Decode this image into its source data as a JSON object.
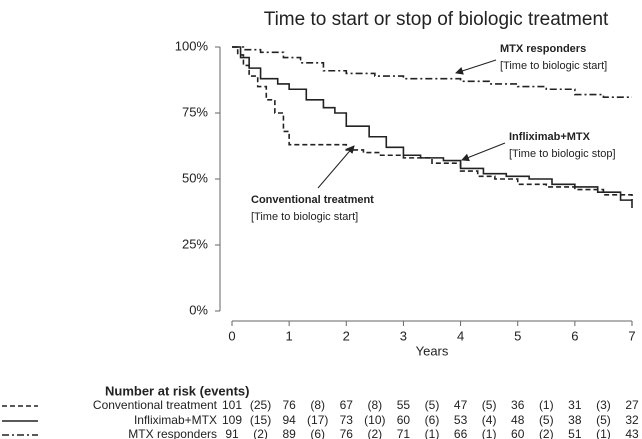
{
  "chart_data": {
    "type": "step",
    "title": "Time to start or stop of biologic treatment",
    "xlabel": "Years",
    "xlim": [
      0,
      7
    ],
    "xticks": [
      0,
      1,
      2,
      3,
      4,
      5,
      6,
      7
    ],
    "ylim": [
      0,
      100
    ],
    "yticks": [
      {
        "value": 0,
        "label": "0%"
      },
      {
        "value": 25,
        "label": "25%"
      },
      {
        "value": 50,
        "label": "50%"
      },
      {
        "value": 75,
        "label": "75%"
      },
      {
        "value": 100,
        "label": "100%"
      }
    ],
    "series": [
      {
        "name": "Conventional treatment",
        "color": "#222222",
        "dash": "dashed",
        "x": [
          0,
          0.1,
          0.2,
          0.3,
          0.45,
          0.6,
          0.75,
          0.9,
          1.0,
          1.85,
          2.0,
          2.3,
          2.6,
          3.0,
          3.5,
          4.0,
          4.3,
          4.6,
          5.0,
          5.5,
          6.0,
          6.5,
          7.0
        ],
        "values": [
          100,
          97,
          93,
          89,
          85,
          80,
          75,
          68,
          63,
          63,
          61,
          60,
          59,
          58,
          56,
          53,
          51,
          50,
          48,
          47,
          46,
          44,
          42
        ]
      },
      {
        "name": "Infliximab+MTX",
        "color": "#222222",
        "dash": "solid",
        "x": [
          0,
          0.15,
          0.3,
          0.5,
          0.8,
          1.0,
          1.3,
          1.6,
          1.8,
          2.0,
          2.4,
          2.7,
          3.0,
          3.3,
          3.7,
          4.0,
          4.4,
          4.8,
          5.2,
          5.6,
          6.0,
          6.4,
          6.8,
          7.0
        ],
        "values": [
          100,
          96,
          92,
          88,
          86,
          84,
          80,
          77,
          75,
          70,
          66,
          62,
          59,
          58,
          57,
          54,
          52,
          51,
          50,
          48,
          47,
          45,
          42,
          39
        ]
      },
      {
        "name": "MTX responders",
        "color": "#222222",
        "dash": "dashdot",
        "x": [
          0,
          0.2,
          0.5,
          0.9,
          1.2,
          1.6,
          2.0,
          2.5,
          3.0,
          4.0,
          4.5,
          5.0,
          5.5,
          6.0,
          6.5,
          7.0
        ],
        "values": [
          100,
          99,
          98,
          96,
          94,
          91,
          90,
          89,
          88,
          87,
          86,
          85,
          84,
          82,
          81,
          81
        ]
      }
    ],
    "annotations": [
      {
        "series": 2,
        "text": "[Time to biologic start]"
      },
      {
        "series": 1,
        "text": "[Time to biologic stop]"
      },
      {
        "series": 0,
        "text": "[Time to biologic start]"
      }
    ],
    "risk_table": {
      "title": "Number at risk (events)",
      "rows": [
        {
          "at_risk": [
            101,
            76,
            67,
            55,
            47,
            36,
            31,
            27
          ],
          "events": [
            "(25)",
            "(8)",
            "(8)",
            "(5)",
            "(5)",
            "(1)",
            "(3)"
          ]
        },
        {
          "at_risk": [
            109,
            94,
            73,
            60,
            53,
            48,
            38,
            32
          ],
          "events": [
            "(15)",
            "(17)",
            "(10)",
            "(6)",
            "(4)",
            "(5)",
            "(5)"
          ]
        },
        {
          "at_risk": [
            91,
            89,
            76,
            71,
            66,
            60,
            51,
            43
          ],
          "events": [
            "(2)",
            "(6)",
            "(2)",
            "(1)",
            "(1)",
            "(2)",
            "(1)"
          ]
        }
      ]
    }
  }
}
